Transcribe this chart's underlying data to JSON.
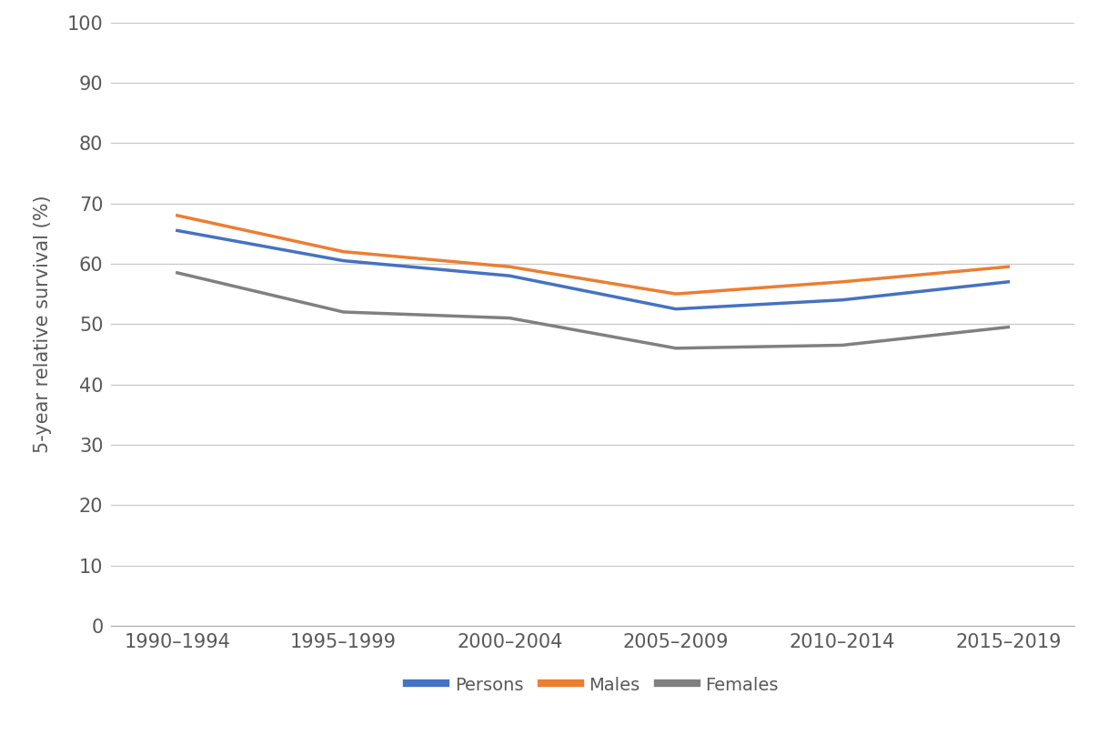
{
  "x_labels": [
    "1990–1994",
    "1995–1999",
    "2000–2004",
    "2005–2009",
    "2010–2014",
    "2015–2019"
  ],
  "x_positions": [
    0,
    1,
    2,
    3,
    4,
    5
  ],
  "persons": [
    65.5,
    60.5,
    58.0,
    52.5,
    54.0,
    57.0
  ],
  "males": [
    68.0,
    62.0,
    59.5,
    55.0,
    57.0,
    59.5
  ],
  "females": [
    58.5,
    52.0,
    51.0,
    46.0,
    46.5,
    49.5
  ],
  "persons_color": "#4472C4",
  "males_color": "#ED7D31",
  "females_color": "#808080",
  "ylabel": "5-year relative survival (%)",
  "ylim": [
    0,
    100
  ],
  "yticks": [
    0,
    10,
    20,
    30,
    40,
    50,
    60,
    70,
    80,
    90,
    100
  ],
  "legend_labels": [
    "Persons",
    "Males",
    "Females"
  ],
  "line_width": 2.5,
  "background_color": "#ffffff",
  "grid_color": "#c8c8c8",
  "tick_fontsize": 15,
  "label_fontsize": 15,
  "legend_fontsize": 14
}
